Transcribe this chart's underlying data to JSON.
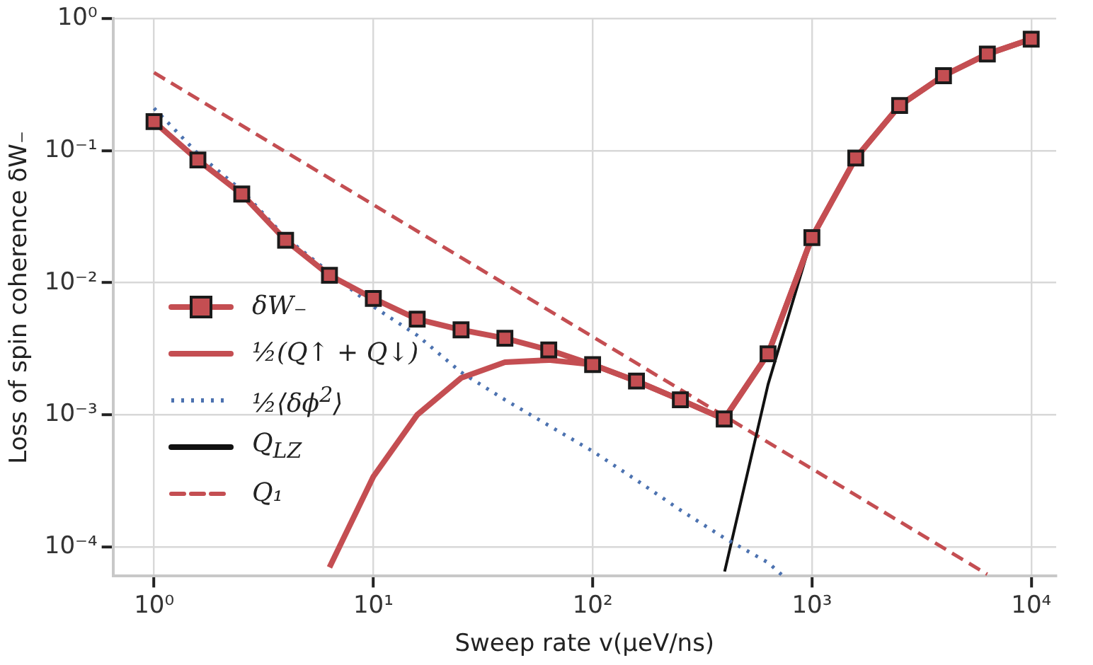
{
  "chart_data": {
    "type": "line",
    "xlabel": "Sweep rate v(μeV/ns)",
    "ylabel": "Loss of spin coherence δW₋",
    "log": "xy",
    "grid": true,
    "legend": "bottom left",
    "xlim": [
      0.65,
      13000
    ],
    "ylim": [
      6e-05,
      1
    ],
    "xticks": [
      {
        "value": 1,
        "label": "10⁰"
      },
      {
        "value": 10,
        "label": "10¹"
      },
      {
        "value": 100,
        "label": "10²"
      },
      {
        "value": 1000,
        "label": "10³"
      },
      {
        "value": 10000,
        "label": "10⁴"
      }
    ],
    "yticks": [
      {
        "value": 0.0001,
        "label": "10⁻⁴"
      },
      {
        "value": 0.001,
        "label": "10⁻³"
      },
      {
        "value": 0.01,
        "label": "10⁻²"
      },
      {
        "value": 0.1,
        "label": "10⁻¹"
      },
      {
        "value": 1,
        "label": "10⁰"
      }
    ],
    "series": [
      {
        "name": "δW₋",
        "color": "#c44e52",
        "marker": "square",
        "line_style": "solid",
        "x": [
          1,
          1.585,
          2.512,
          3.981,
          6.31,
          10,
          15.85,
          25.12,
          39.81,
          63.1,
          100,
          158.5,
          251.2,
          398.1,
          631,
          1000,
          1585,
          2512,
          3981,
          6310,
          10000
        ],
        "values": [
          0.166,
          0.085,
          0.047,
          0.021,
          0.0114,
          0.0076,
          0.0053,
          0.0044,
          0.0038,
          0.0031,
          0.0024,
          0.0018,
          0.0013,
          0.00093,
          0.0029,
          0.022,
          0.088,
          0.22,
          0.37,
          0.54,
          0.7
        ]
      },
      {
        "name": "½(Q↑ + Q↓)",
        "color": "#c44e52",
        "marker": "none",
        "line_style": "solid",
        "x": [
          6.31,
          10,
          15.85,
          25.12,
          39.81,
          63.1,
          100,
          158.5,
          251.2,
          398.1,
          631,
          1000,
          1585,
          2512,
          3981,
          6310,
          10000
        ],
        "values": [
          7e-05,
          0.00034,
          0.001,
          0.0019,
          0.0025,
          0.0026,
          0.0024,
          0.0018,
          0.0013,
          0.00093,
          0.0029,
          0.022,
          0.088,
          0.22,
          0.37,
          0.54,
          0.7
        ]
      },
      {
        "name": "½⟨δϕ$^{2}$⟩",
        "color": "#4c72b0",
        "marker": "none",
        "line_style": "dotted",
        "x": [
          1,
          1.585,
          2.512,
          3.981,
          6.31,
          10,
          15.85,
          25.12,
          39.81,
          100,
          158.5,
          251.2,
          398.1,
          631,
          740
        ],
        "values": [
          0.21,
          0.095,
          0.05,
          0.022,
          0.012,
          0.0066,
          0.004,
          0.0021,
          0.0013,
          0.00053,
          0.00032,
          0.00019,
          0.000117,
          7.6e-05,
          6e-05
        ]
      },
      {
        "name": "Q$_{LZ}$",
        "color": "#111111",
        "marker": "none",
        "line_style": "solid",
        "x": [
          400,
          631,
          1000,
          1585,
          2512,
          3981,
          6310,
          10000
        ],
        "values": [
          6.5e-05,
          0.0017,
          0.022,
          0.088,
          0.22,
          0.37,
          0.54,
          0.7
        ]
      },
      {
        "name": "Q₁",
        "color": "#c44e52",
        "marker": "none",
        "line_style": "dashed",
        "x": [
          1,
          6300
        ],
        "values": [
          0.39,
          6.2e-05
        ]
      }
    ]
  }
}
